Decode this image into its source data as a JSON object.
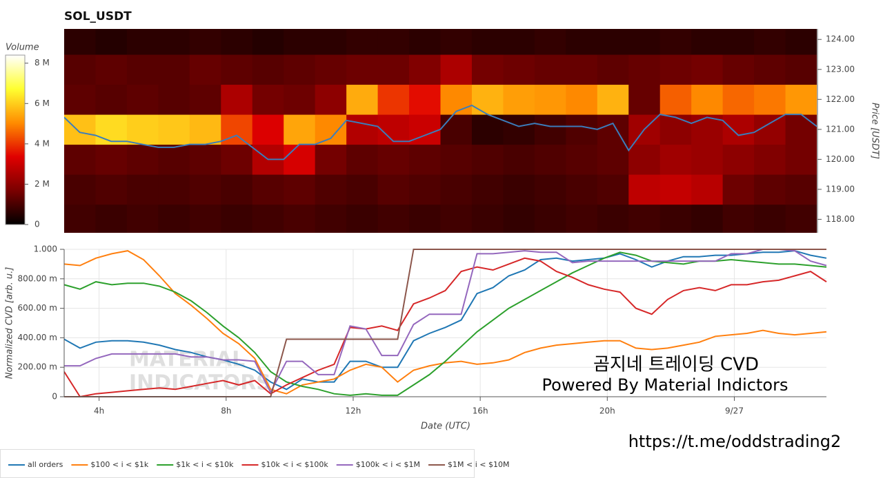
{
  "chart_data": [
    {
      "type": "heatmap",
      "title": "SOL_USDT",
      "xlim": [
        2.9,
        26.9
      ],
      "x_bins": [
        2.9,
        3.9,
        4.9,
        5.9,
        6.9,
        7.9,
        8.9,
        9.9,
        10.9,
        11.9,
        12.9,
        13.9,
        14.9,
        15.9,
        16.9,
        17.9,
        18.9,
        19.9,
        20.9,
        21.9,
        22.9,
        23.9,
        24.9,
        25.9,
        26.9
      ],
      "y_bins": [
        117.5,
        118.5,
        119.5,
        120.5,
        121.5,
        122.5,
        123.5,
        124.5
      ],
      "z": [
        [
          900000,
          800000,
          900000,
          800000,
          900000,
          800000,
          900000,
          1000000,
          900000,
          800000,
          900000,
          800000,
          900000,
          800000,
          700000,
          800000,
          900000,
          800000,
          900000,
          800000,
          700000,
          900000,
          800000,
          900000
        ],
        [
          1000000,
          1100000,
          1000000,
          1000000,
          1100000,
          1000000,
          1200000,
          1300000,
          1100000,
          1000000,
          1200000,
          1100000,
          1000000,
          900000,
          800000,
          900000,
          1000000,
          1100000,
          2800000,
          2900000,
          2700000,
          1500000,
          1300000,
          1200000
        ],
        [
          1300000,
          1400000,
          1300000,
          1200000,
          1300000,
          1500000,
          2600000,
          3200000,
          1600000,
          1300000,
          1400000,
          1300000,
          1200000,
          1100000,
          1000000,
          1100000,
          1200000,
          1300000,
          2000000,
          2300000,
          2200000,
          2000000,
          1800000,
          1600000
        ],
        [
          5800000,
          6200000,
          6000000,
          5900000,
          5700000,
          4200000,
          3300000,
          5400000,
          5000000,
          2600000,
          2800000,
          3000000,
          1000000,
          600000,
          700000,
          900000,
          1100000,
          1300000,
          2300000,
          2000000,
          2200000,
          2500000,
          2100000,
          1600000
        ],
        [
          1300000,
          1200000,
          1300000,
          1200000,
          1300000,
          2500000,
          1600000,
          1500000,
          2000000,
          5500000,
          4000000,
          3500000,
          5000000,
          5600000,
          5300000,
          5200000,
          5000000,
          5600000,
          1400000,
          4500000,
          5000000,
          4600000,
          4800000,
          5200000
        ],
        [
          1200000,
          1300000,
          1200000,
          1200000,
          1400000,
          1300000,
          1200000,
          1300000,
          1400000,
          1500000,
          1500000,
          1800000,
          2500000,
          1600000,
          1500000,
          1400000,
          1400000,
          1300000,
          1400000,
          1500000,
          1600000,
          1400000,
          1300000,
          1200000
        ],
        [
          600000,
          500000,
          600000,
          600000,
          700000,
          600000,
          500000,
          600000,
          600000,
          700000,
          700000,
          600000,
          700000,
          600000,
          600000,
          700000,
          600000,
          600000,
          600000,
          700000,
          600000,
          600000,
          700000,
          600000
        ]
      ],
      "colormap": [
        "#000000",
        "#7a0000",
        "#e00000",
        "#ff8c00",
        "#ffff30",
        "#ffffff"
      ],
      "colorbar": {
        "label": "Volume",
        "lim": [
          0,
          8400000
        ],
        "ticks": [
          0,
          {
            "value": 2000000,
            "label": "2 M"
          },
          {
            "value": 4000000,
            "label": "4 M"
          },
          {
            "value": 6000000,
            "label": "6 M"
          },
          {
            "value": 8000000,
            "label": "8 M"
          }
        ]
      },
      "ylabel": "Price [USDT]",
      "ylim": [
        117.55,
        124.35
      ],
      "yticks": [
        {
          "value": 118,
          "label": "118.00"
        },
        {
          "value": 119,
          "label": "119.00"
        },
        {
          "value": 120,
          "label": "120.00"
        },
        {
          "value": 121,
          "label": "121.00"
        },
        {
          "value": 122,
          "label": "122.00"
        },
        {
          "value": 123,
          "label": "123.00"
        },
        {
          "value": 124,
          "label": "124.00"
        }
      ],
      "x": [
        2.9,
        3.4,
        3.9,
        4.4,
        4.9,
        5.4,
        5.9,
        6.4,
        6.9,
        7.4,
        7.9,
        8.4,
        8.9,
        9.4,
        9.9,
        10.4,
        10.9,
        11.4,
        11.9,
        12.4,
        12.9,
        13.4,
        13.9,
        14.4,
        14.9,
        15.4,
        15.9,
        16.4,
        16.9,
        17.4,
        17.9,
        18.4,
        18.9,
        19.4,
        19.9,
        20.4,
        20.9,
        21.4,
        21.9,
        22.4,
        22.9,
        23.4,
        23.9,
        24.4,
        24.9,
        25.4,
        25.9,
        26.4,
        26.9
      ],
      "line": {
        "color": "#3b7dbb",
        "values": [
          121.4,
          120.9,
          120.8,
          120.6,
          120.6,
          120.5,
          120.4,
          120.4,
          120.5,
          120.5,
          120.6,
          120.8,
          120.4,
          120.0,
          120.0,
          120.5,
          120.5,
          120.7,
          121.3,
          121.2,
          121.1,
          120.6,
          120.6,
          120.8,
          121.0,
          121.6,
          121.8,
          121.5,
          121.3,
          121.1,
          121.2,
          121.1,
          121.1,
          121.1,
          121.0,
          121.2,
          120.3,
          121.0,
          121.5,
          121.4,
          121.2,
          121.4,
          121.3,
          120.8,
          120.9,
          121.2,
          121.5,
          121.5,
          121.1
        ]
      }
    },
    {
      "type": "line",
      "xlabel": "Date (UTC)",
      "ylabel": "Normalized CVD [arb. u.]",
      "xlim": [
        2.9,
        26.9
      ],
      "xticks": [
        {
          "value": 4,
          "label": "4h"
        },
        {
          "value": 8,
          "label": "8h"
        },
        {
          "value": 12,
          "label": "12h"
        },
        {
          "value": 16,
          "label": "16h"
        },
        {
          "value": 20,
          "label": "20h"
        },
        {
          "value": 24,
          "label": "9/27"
        }
      ],
      "ylim": [
        0,
        1
      ],
      "yticks": [
        0,
        {
          "value": 0.2,
          "label": "200.00 m"
        },
        {
          "value": 0.4,
          "label": "400.00 m"
        },
        {
          "value": 0.6,
          "label": "600.00 m"
        },
        {
          "value": 0.8,
          "label": "800.00 m"
        },
        {
          "value": 1,
          "label": "1.000"
        }
      ],
      "grid": true,
      "legend": "bottom-left",
      "x": [
        2.9,
        3.4,
        3.9,
        4.4,
        4.9,
        5.4,
        5.9,
        6.4,
        6.9,
        7.4,
        7.9,
        8.4,
        8.9,
        9.4,
        9.9,
        10.4,
        10.9,
        11.4,
        11.9,
        12.4,
        12.9,
        13.4,
        13.9,
        14.4,
        14.9,
        15.4,
        15.9,
        16.4,
        16.9,
        17.4,
        17.9,
        18.4,
        18.9,
        19.4,
        19.9,
        20.4,
        20.9,
        21.4,
        21.9,
        22.4,
        22.9,
        23.4,
        23.9,
        24.4,
        24.9,
        25.4,
        25.9,
        26.4,
        26.9
      ],
      "series": [
        {
          "name": "all orders",
          "color": "#1f77b4",
          "values": [
            0.39,
            0.33,
            0.37,
            0.38,
            0.38,
            0.37,
            0.35,
            0.32,
            0.3,
            0.27,
            0.25,
            0.22,
            0.18,
            0.1,
            0.05,
            0.12,
            0.1,
            0.1,
            0.24,
            0.24,
            0.2,
            0.2,
            0.38,
            0.43,
            0.47,
            0.52,
            0.7,
            0.74,
            0.82,
            0.86,
            0.93,
            0.94,
            0.92,
            0.93,
            0.94,
            0.97,
            0.93,
            0.88,
            0.92,
            0.95,
            0.95,
            0.96,
            0.96,
            0.97,
            0.98,
            0.98,
            0.99,
            0.96,
            0.94
          ]
        },
        {
          "name": "$100 < i < $1k",
          "color": "#ff7f0e",
          "values": [
            0.9,
            0.89,
            0.94,
            0.97,
            0.99,
            0.93,
            0.82,
            0.7,
            0.62,
            0.53,
            0.43,
            0.36,
            0.26,
            0.05,
            0.02,
            0.08,
            0.1,
            0.12,
            0.18,
            0.22,
            0.2,
            0.1,
            0.18,
            0.21,
            0.23,
            0.24,
            0.22,
            0.23,
            0.25,
            0.3,
            0.33,
            0.35,
            0.36,
            0.37,
            0.38,
            0.38,
            0.33,
            0.32,
            0.33,
            0.35,
            0.37,
            0.41,
            0.42,
            0.43,
            0.45,
            0.43,
            0.42,
            0.43,
            0.44
          ]
        },
        {
          "name": "$1k < i < $10k",
          "color": "#2ca02c",
          "values": [
            0.76,
            0.73,
            0.78,
            0.76,
            0.77,
            0.77,
            0.75,
            0.71,
            0.65,
            0.57,
            0.48,
            0.4,
            0.3,
            0.17,
            0.1,
            0.07,
            0.05,
            0.02,
            0.01,
            0.02,
            0.01,
            0.01,
            0.08,
            0.15,
            0.24,
            0.34,
            0.44,
            0.52,
            0.6,
            0.66,
            0.72,
            0.78,
            0.84,
            0.89,
            0.94,
            0.98,
            0.96,
            0.92,
            0.91,
            0.9,
            0.92,
            0.92,
            0.93,
            0.92,
            0.91,
            0.9,
            0.9,
            0.89,
            0.88
          ]
        },
        {
          "name": "$10k < i < $100k",
          "color": "#d62728",
          "values": [
            0.17,
            0.0,
            0.02,
            0.03,
            0.04,
            0.05,
            0.06,
            0.05,
            0.07,
            0.09,
            0.11,
            0.08,
            0.11,
            0.02,
            0.08,
            0.13,
            0.18,
            0.22,
            0.47,
            0.46,
            0.48,
            0.45,
            0.63,
            0.67,
            0.72,
            0.85,
            0.88,
            0.86,
            0.9,
            0.94,
            0.92,
            0.85,
            0.81,
            0.76,
            0.73,
            0.71,
            0.6,
            0.56,
            0.66,
            0.72,
            0.74,
            0.72,
            0.76,
            0.76,
            0.78,
            0.79,
            0.82,
            0.85,
            0.78
          ]
        },
        {
          "name": "$100k < i < $1M",
          "color": "#9467bd",
          "values": [
            0.21,
            0.21,
            0.26,
            0.29,
            0.29,
            0.29,
            0.29,
            0.29,
            0.27,
            0.27,
            0.25,
            0.25,
            0.24,
            0.03,
            0.24,
            0.24,
            0.15,
            0.15,
            0.48,
            0.46,
            0.28,
            0.28,
            0.49,
            0.56,
            0.56,
            0.56,
            0.97,
            0.97,
            0.98,
            0.99,
            0.98,
            0.98,
            0.91,
            0.92,
            0.92,
            0.92,
            0.92,
            0.92,
            0.92,
            0.92,
            0.92,
            0.92,
            0.97,
            0.97,
            1.0,
            1.0,
            0.99,
            0.92,
            0.89
          ]
        },
        {
          "name": "$1M < i < $10M",
          "color": "#8c564b",
          "values": [
            0,
            0,
            0,
            0,
            0,
            0,
            0,
            0,
            0,
            0,
            0,
            0,
            0,
            0,
            0.39,
            0.39,
            0.39,
            0.39,
            0.39,
            0.39,
            0.39,
            0.39,
            1,
            1,
            1,
            1,
            1,
            1,
            1,
            1,
            1,
            1,
            1,
            1,
            1,
            1,
            1,
            1,
            1,
            1,
            1,
            1,
            1,
            1,
            1,
            1,
            1,
            1,
            1
          ]
        }
      ],
      "watermark": [
        "MATERIAL",
        "INDICATORS"
      ],
      "annotations": [
        "곰지네 트레이딩 CVD",
        "Powered By Material Indictors",
        "https://t.me/oddstrading2"
      ]
    }
  ]
}
